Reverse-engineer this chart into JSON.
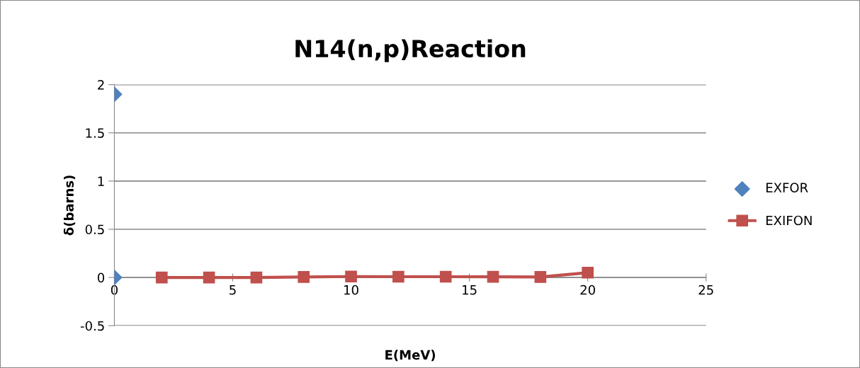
{
  "chart_data": {
    "type": "scatter",
    "title": "N14(n,p)Reaction",
    "xlabel": "E(MeV)",
    "ylabel": "δ(barns)",
    "series": [
      {
        "name": "EXFOR",
        "color": "#4f81bd",
        "marker": "diamond",
        "x": [
          0,
          0
        ],
        "values": [
          1.9,
          0
        ]
      },
      {
        "name": "EXIFON",
        "type": "line",
        "color": "#c0504d",
        "marker": "square",
        "line_style": "solid",
        "x": [
          2,
          4,
          6,
          8,
          10,
          12,
          14,
          16,
          18,
          20
        ],
        "values": [
          0,
          0,
          0,
          0.005,
          0.01,
          0.008,
          0.008,
          0.007,
          0.005,
          0.05
        ]
      }
    ],
    "xlim": [
      0,
      25
    ],
    "xticks": [
      0,
      5,
      10,
      15,
      20,
      25
    ],
    "ylim": [
      -0.5,
      2
    ],
    "yticks": [
      -0.5,
      0,
      0.5,
      1,
      1.5,
      2
    ],
    "grid": "y",
    "legend": "right"
  }
}
